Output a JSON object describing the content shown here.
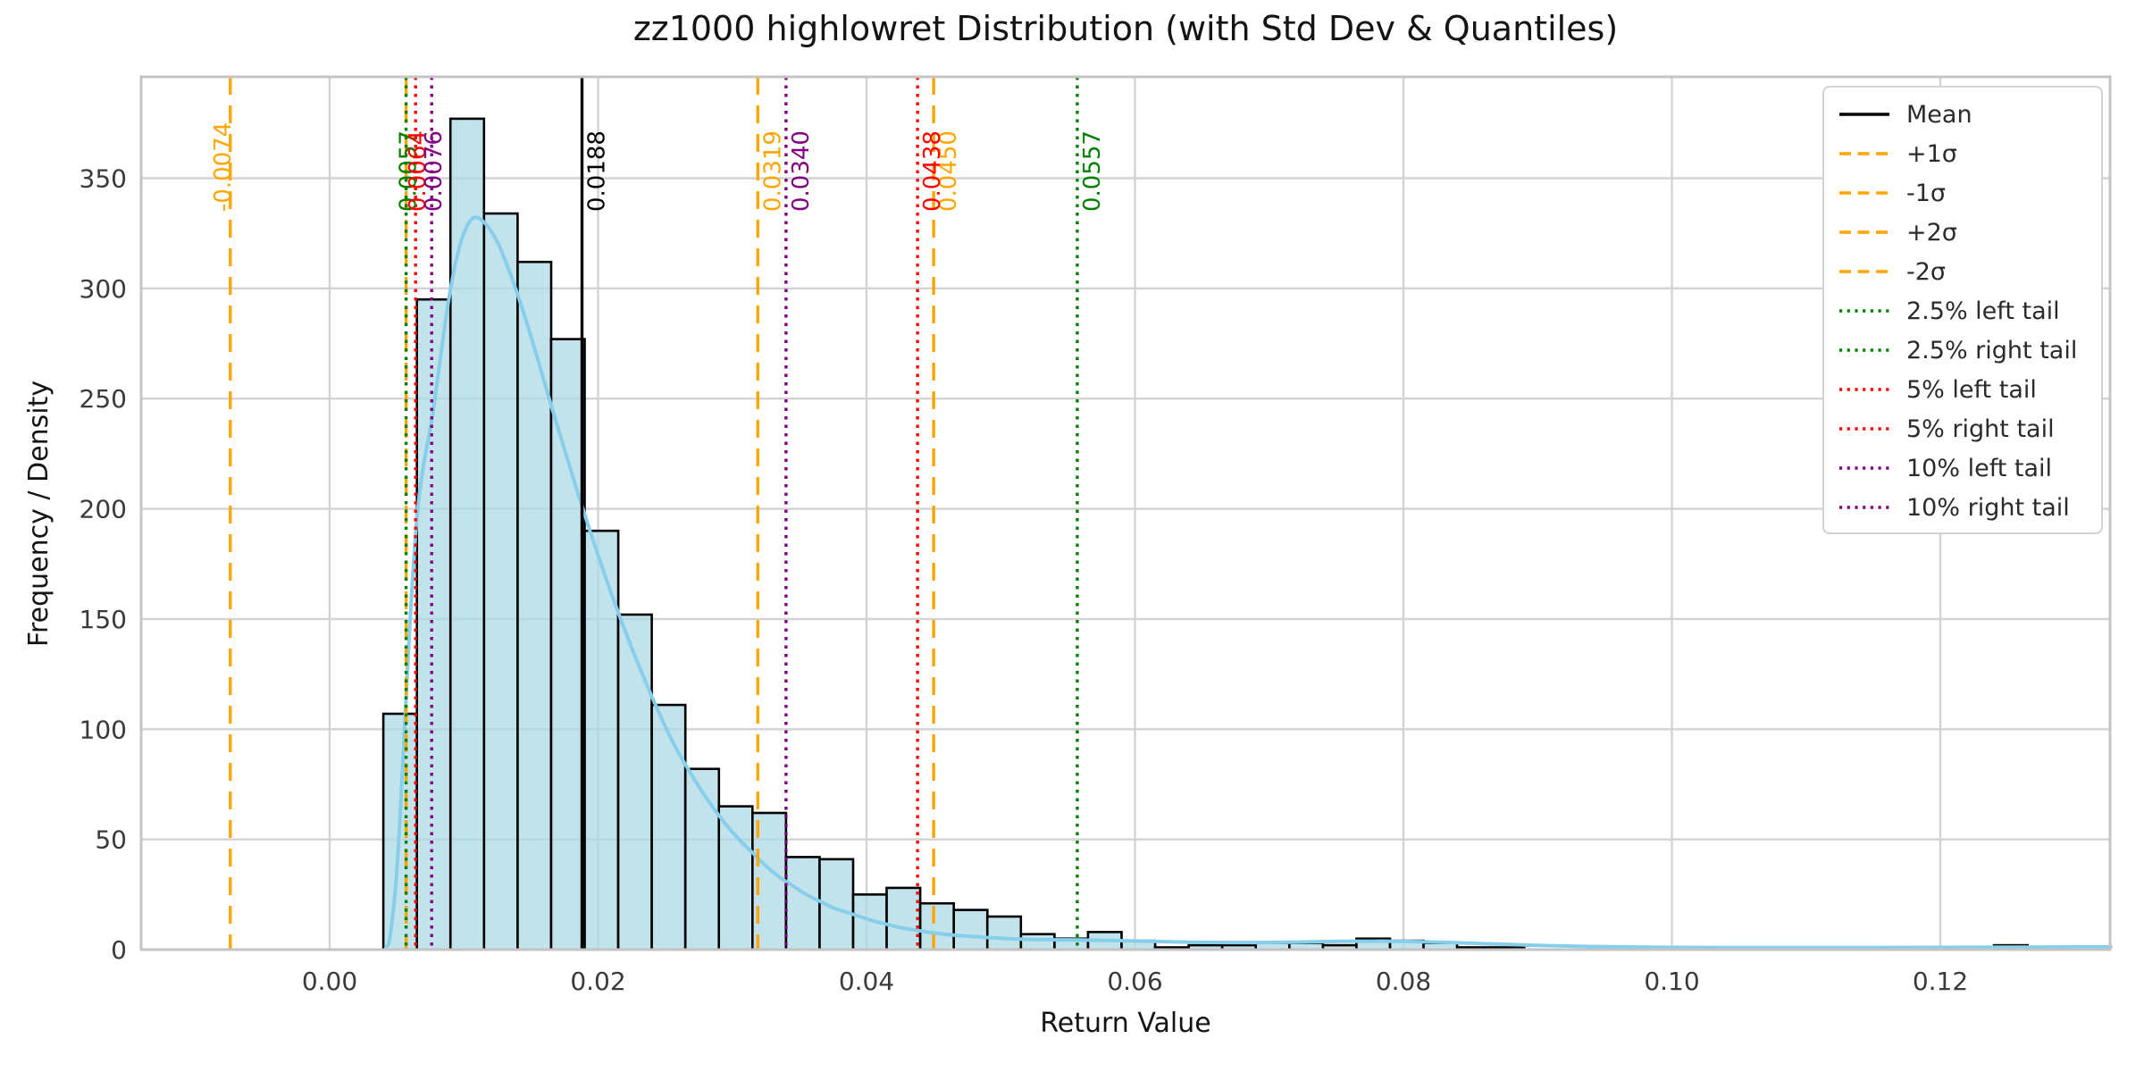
{
  "chart_data": {
    "type": "histogram",
    "title": "zz1000 highlowret Distribution (with Std Dev & Quantiles)",
    "xlabel": "Return Value",
    "ylabel": "Frequency / Density",
    "x_tick_values": [
      0.0,
      0.02,
      0.04,
      0.06,
      0.08,
      0.1,
      0.12
    ],
    "x_tick_labels": [
      "0.00",
      "0.02",
      "0.04",
      "0.06",
      "0.08",
      "0.10",
      "0.12"
    ],
    "y_tick_values": [
      0,
      50,
      100,
      150,
      200,
      250,
      300,
      350
    ],
    "xlim": [
      -0.014,
      0.1327
    ],
    "ylim": [
      0,
      396
    ],
    "grid": true,
    "legend_position": "upper right",
    "colors": {
      "hist_fill": "#ADD8E6",
      "hist_edge": "#000000",
      "kde": "#87CEEB",
      "mean": "#000000",
      "sigma": "#FFA500",
      "q25": "#008000",
      "q5": "#FF0000",
      "q10": "#800080",
      "grid": "#d2d2d2",
      "spine": "#c4c4c4",
      "tick_text": "#3a3a3a"
    },
    "histogram": {
      "bin_start": 0.004,
      "bin_width": 0.0025,
      "counts": [
        107,
        295,
        377,
        334,
        312,
        277,
        190,
        152,
        111,
        82,
        65,
        62,
        42,
        41,
        25,
        28,
        21,
        18,
        15,
        7,
        5,
        8,
        4,
        1,
        2,
        2,
        3,
        3,
        2,
        5,
        4,
        3,
        1,
        1,
        0,
        0,
        0,
        0,
        0,
        0,
        0,
        0,
        0,
        0,
        0,
        1,
        0,
        0,
        2
      ]
    },
    "kde_points": [
      [
        0.0042,
        1
      ],
      [
        0.0045,
        6
      ],
      [
        0.005,
        35
      ],
      [
        0.0055,
        90
      ],
      [
        0.006,
        150
      ],
      [
        0.0065,
        196
      ],
      [
        0.007,
        220
      ],
      [
        0.0076,
        240
      ],
      [
        0.0082,
        266
      ],
      [
        0.0088,
        292
      ],
      [
        0.0094,
        312
      ],
      [
        0.01,
        325
      ],
      [
        0.0107,
        332
      ],
      [
        0.0115,
        330
      ],
      [
        0.0125,
        321
      ],
      [
        0.0135,
        306
      ],
      [
        0.0145,
        288
      ],
      [
        0.0155,
        268
      ],
      [
        0.0165,
        247
      ],
      [
        0.0175,
        227
      ],
      [
        0.0185,
        207
      ],
      [
        0.0195,
        188
      ],
      [
        0.0205,
        170
      ],
      [
        0.0215,
        153
      ],
      [
        0.0225,
        137
      ],
      [
        0.0235,
        122
      ],
      [
        0.0245,
        108
      ],
      [
        0.0255,
        95
      ],
      [
        0.0265,
        84
      ],
      [
        0.0275,
        74
      ],
      [
        0.0285,
        65
      ],
      [
        0.0295,
        57
      ],
      [
        0.0305,
        50
      ],
      [
        0.0315,
        44
      ],
      [
        0.0325,
        38
      ],
      [
        0.0335,
        33
      ],
      [
        0.0345,
        29
      ],
      [
        0.0355,
        25
      ],
      [
        0.0365,
        22
      ],
      [
        0.0375,
        19
      ],
      [
        0.0385,
        17
      ],
      [
        0.0395,
        15
      ],
      [
        0.0405,
        13
      ],
      [
        0.0415,
        11.5
      ],
      [
        0.0425,
        10
      ],
      [
        0.0435,
        9
      ],
      [
        0.0445,
        8
      ],
      [
        0.0455,
        7.2
      ],
      [
        0.0465,
        6.6
      ],
      [
        0.0475,
        6.1
      ],
      [
        0.0485,
        5.7
      ],
      [
        0.0495,
        5.3
      ],
      [
        0.0505,
        5.0
      ],
      [
        0.0515,
        4.8
      ],
      [
        0.0525,
        4.6
      ],
      [
        0.0535,
        4.5
      ],
      [
        0.0545,
        4.4
      ],
      [
        0.0555,
        4.4
      ],
      [
        0.0565,
        4.3
      ],
      [
        0.0575,
        4.2
      ],
      [
        0.0585,
        4.1
      ],
      [
        0.0595,
        4.0
      ],
      [
        0.061,
        3.8
      ],
      [
        0.063,
        3.5
      ],
      [
        0.065,
        3.3
      ],
      [
        0.067,
        3.2
      ],
      [
        0.069,
        3.2
      ],
      [
        0.071,
        3.3
      ],
      [
        0.073,
        3.5
      ],
      [
        0.075,
        3.7
      ],
      [
        0.077,
        3.8
      ],
      [
        0.079,
        3.8
      ],
      [
        0.081,
        3.6
      ],
      [
        0.083,
        3.3
      ],
      [
        0.085,
        2.9
      ],
      [
        0.087,
        2.5
      ],
      [
        0.089,
        2.1
      ],
      [
        0.091,
        1.8
      ],
      [
        0.094,
        1.4
      ],
      [
        0.097,
        1.2
      ],
      [
        0.1,
        1.0
      ],
      [
        0.105,
        0.9
      ],
      [
        0.11,
        0.9
      ],
      [
        0.115,
        0.9
      ],
      [
        0.12,
        1.0
      ],
      [
        0.125,
        1.1
      ],
      [
        0.13,
        1.2
      ],
      [
        0.1327,
        1.2
      ]
    ],
    "vlines": [
      {
        "name": "mean",
        "legend": "Mean",
        "value": 0.0188,
        "label": "0.0188",
        "color_key": "mean",
        "dash": "solid",
        "label_side": "right"
      },
      {
        "name": "plus-1-sigma",
        "legend": "+1σ",
        "value": 0.0319,
        "label": "0.0319",
        "color_key": "sigma",
        "dash": "dashed",
        "label_side": "right"
      },
      {
        "name": "minus-1-sigma",
        "legend": "-1σ",
        "value": 0.0057,
        "label": "0.0057",
        "color_key": "sigma",
        "dash": "dashed",
        "label_side": "center"
      },
      {
        "name": "plus-2-sigma",
        "legend": "+2σ",
        "value": 0.045,
        "label": "0.0450",
        "color_key": "sigma",
        "dash": "dashed",
        "label_side": "right"
      },
      {
        "name": "minus-2-sigma",
        "legend": "-2σ",
        "value": -0.0074,
        "label": "-0.0074",
        "color_key": "sigma",
        "dash": "dashed",
        "label_side": "left"
      },
      {
        "name": "q2-5-left",
        "legend": "2.5% left tail",
        "value": 0.0057,
        "label": "0.0057",
        "color_key": "q25",
        "dash": "dotted",
        "label_side": "center"
      },
      {
        "name": "q2-5-right",
        "legend": "2.5% right tail",
        "value": 0.0557,
        "label": "0.0557",
        "color_key": "q25",
        "dash": "dotted",
        "label_side": "right"
      },
      {
        "name": "q5-left",
        "legend": "5% left tail",
        "value": 0.0064,
        "label": "0.0064",
        "color_key": "q5",
        "dash": "dotted",
        "label_side": "center"
      },
      {
        "name": "q5-right",
        "legend": "5% right tail",
        "value": 0.0438,
        "label": "0.0438",
        "color_key": "q5",
        "dash": "dotted",
        "label_side": "right"
      },
      {
        "name": "q10-left",
        "legend": "10% left tail",
        "value": 0.0076,
        "label": "0.0076",
        "color_key": "q10",
        "dash": "dotted",
        "label_side": "center"
      },
      {
        "name": "q10-right",
        "legend": "10% right tail",
        "value": 0.034,
        "label": "0.0340",
        "color_key": "q10",
        "dash": "dotted",
        "label_side": "right"
      }
    ]
  }
}
